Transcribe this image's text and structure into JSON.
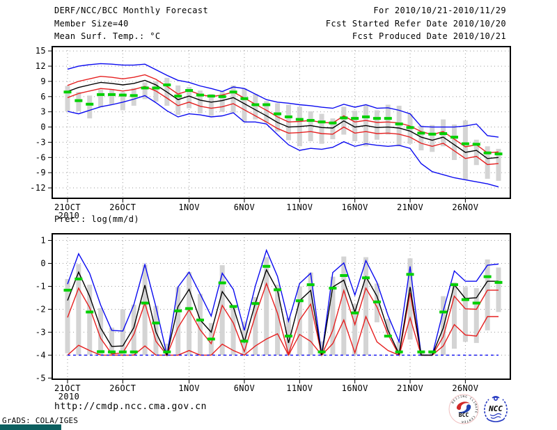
{
  "header": {
    "title": "DERF/NCC/BCC Monthly Forecast",
    "member_size": "Member Size=40",
    "for_range": "For 2010/10/21-2010/11/29",
    "fcst_started": "Fcst Started Refer Date 2010/10/20",
    "fcst_produced": "Fcst Produced Date 2010/10/21"
  },
  "footer": {
    "url": "http://cmdp.ncc.cma.gov.cn",
    "grads_credit": "GrADS: COLA/IGES"
  },
  "logos": {
    "bcc_label": "BCC",
    "bcc_ring_text": "BEIJING CLIMATE CENTER",
    "ncc_label": "NCC"
  },
  "colors": {
    "blue": "#0a0af0",
    "red": "#e62020",
    "black": "#000000",
    "green": "#00d000",
    "bar": "#d4d4d4",
    "grid": "#9a9a9a",
    "frame": "#000000",
    "status_teal": "#0c5f5f"
  },
  "chart_data": [
    {
      "type": "line",
      "title": "Mean Surf. Temp.: °C",
      "n_points": 40,
      "ylim": [
        -14.05,
        15.85
      ],
      "yticks": [
        15,
        12,
        9,
        6,
        3,
        0,
        -3,
        -6,
        -9,
        -12
      ],
      "x_ticks": [
        {
          "day": 0,
          "label": "21OCT",
          "sub": "2010"
        },
        {
          "day": 5,
          "label": "26OCT"
        },
        {
          "day": 11,
          "label": "1NOV"
        },
        {
          "day": 16,
          "label": "6NOV"
        },
        {
          "day": 21,
          "label": "11NOV"
        },
        {
          "day": 26,
          "label": "16NOV"
        },
        {
          "day": 31,
          "label": "21NOV"
        },
        {
          "day": 36,
          "label": "26NOV"
        }
      ],
      "series": {
        "upper_blue": [
          11.4,
          12.0,
          12.3,
          12.5,
          12.4,
          12.2,
          12.2,
          12.4,
          11.3,
          10.2,
          9.2,
          8.8,
          8.1,
          7.6,
          7.0,
          7.9,
          7.6,
          6.5,
          5.4,
          4.9,
          4.7,
          4.4,
          4.2,
          3.9,
          3.7,
          4.5,
          3.9,
          4.4,
          3.7,
          3.8,
          3.3,
          2.6,
          0.1,
          0.0,
          0.0,
          0.0,
          0.2,
          0.6,
          -1.7,
          -2.0
        ],
        "upper_red": [
          8.2,
          9.0,
          9.5,
          10.0,
          9.8,
          9.5,
          9.8,
          10.3,
          9.4,
          8.0,
          6.5,
          7.2,
          6.4,
          6.0,
          6.3,
          6.9,
          5.7,
          4.5,
          3.3,
          2.0,
          1.0,
          1.1,
          1.3,
          0.9,
          0.8,
          2.2,
          1.0,
          1.3,
          0.9,
          1.0,
          0.8,
          0.2,
          -0.9,
          -1.5,
          -0.9,
          -2.4,
          -3.9,
          -3.5,
          -5.1,
          -4.9
        ],
        "median_black": [
          7.0,
          7.8,
          8.3,
          8.8,
          8.6,
          8.3,
          8.6,
          9.2,
          8.3,
          6.9,
          5.4,
          6.1,
          5.3,
          4.9,
          5.2,
          5.8,
          4.6,
          3.4,
          2.2,
          0.9,
          0.0,
          0.1,
          0.3,
          -0.1,
          -0.2,
          1.2,
          0.0,
          0.3,
          -0.1,
          0.0,
          -0.2,
          -0.8,
          -2.0,
          -2.6,
          -2.0,
          -3.5,
          -5.0,
          -4.6,
          -6.2,
          -6.0
        ],
        "lower_red": [
          5.8,
          6.6,
          7.1,
          7.6,
          7.4,
          7.1,
          7.4,
          8.0,
          7.1,
          5.7,
          4.2,
          4.9,
          4.1,
          3.7,
          4.0,
          4.6,
          3.4,
          2.2,
          1.0,
          -0.3,
          -1.2,
          -1.1,
          -0.9,
          -1.3,
          -1.4,
          0.0,
          -1.2,
          -0.9,
          -1.3,
          -1.2,
          -1.4,
          -2.0,
          -3.2,
          -3.8,
          -3.2,
          -4.7,
          -6.2,
          -5.8,
          -7.4,
          -7.2
        ],
        "lower_blue": [
          3.1,
          2.6,
          3.3,
          4.0,
          4.4,
          4.9,
          5.5,
          6.2,
          4.8,
          3.2,
          2.0,
          2.6,
          2.4,
          2.0,
          2.2,
          2.8,
          1.0,
          1.0,
          0.6,
          -1.5,
          -3.5,
          -4.6,
          -4.2,
          -4.4,
          -4.0,
          -2.9,
          -3.8,
          -3.3,
          -3.6,
          -3.8,
          -3.6,
          -4.2,
          -7.2,
          -8.8,
          -9.4,
          -10.0,
          -10.4,
          -10.8,
          -11.2,
          -11.8
        ],
        "obs_green": [
          6.9,
          5.2,
          4.5,
          6.4,
          6.4,
          6.3,
          6.2,
          7.7,
          7.7,
          8.3,
          6.1,
          7.2,
          6.3,
          6.1,
          6.0,
          6.9,
          5.6,
          4.4,
          4.4,
          2.6,
          2.0,
          1.5,
          1.3,
          1.0,
          0.8,
          1.8,
          1.7,
          2.0,
          1.7,
          1.7,
          0.6,
          -0.1,
          -1.2,
          -1.4,
          -1.3,
          -2.0,
          -3.3,
          -3.4,
          -5.1,
          -5.3
        ],
        "bar_low": [
          3.1,
          3.1,
          1.7,
          3.9,
          4.5,
          3.3,
          4.2,
          5.5,
          5.0,
          4.2,
          2.4,
          3.7,
          2.7,
          2.2,
          3.0,
          2.8,
          1.0,
          1.5,
          0.8,
          -0.9,
          -2.6,
          -3.8,
          -2.8,
          -3.3,
          -2.4,
          -1.5,
          -2.8,
          -3.8,
          -2.5,
          -1.5,
          -3.8,
          -3.3,
          -4.6,
          -4.9,
          -3.8,
          -6.5,
          -10.4,
          -7.5,
          -10.2,
          -10.6
        ],
        "bar_high": [
          8.1,
          6.9,
          6.2,
          7.4,
          7.5,
          6.9,
          7.7,
          8.8,
          9.0,
          9.7,
          8.2,
          7.9,
          7.2,
          6.5,
          7.0,
          8.2,
          7.6,
          6.5,
          5.1,
          4.7,
          4.4,
          4.0,
          3.1,
          2.6,
          1.7,
          4.0,
          3.2,
          4.4,
          3.3,
          4.4,
          4.2,
          2.6,
          0.3,
          0.4,
          1.5,
          0.5,
          1.3,
          -2.5,
          -3.8,
          -4.3
        ]
      }
    },
    {
      "type": "line",
      "title": "Prec.: log(mm/d)",
      "n_points": 40,
      "ylim": [
        -5.05,
        1.29
      ],
      "yticks": [
        1,
        0,
        -1,
        -2,
        -3,
        -4,
        -5
      ],
      "x_ticks": [
        {
          "day": 0,
          "label": "21OCT",
          "sub": "2010"
        },
        {
          "day": 5,
          "label": "26OCT"
        },
        {
          "day": 11,
          "label": "1NOV"
        },
        {
          "day": 16,
          "label": "6NOV"
        },
        {
          "day": 21,
          "label": "11NOV"
        },
        {
          "day": 26,
          "label": "16NOV"
        },
        {
          "day": 31,
          "label": "21NOV"
        },
        {
          "day": 36,
          "label": "26NOV"
        }
      ],
      "series": {
        "upper_blue": [
          -0.9,
          0.42,
          -0.43,
          -1.82,
          -2.92,
          -2.95,
          -1.8,
          -0.05,
          -1.9,
          -4.0,
          -1.03,
          -0.38,
          -1.33,
          -2.3,
          -0.43,
          -1.13,
          -2.92,
          -0.98,
          0.57,
          -0.57,
          -2.52,
          -0.88,
          -0.43,
          -4.0,
          -0.4,
          0.02,
          -1.38,
          0.12,
          -0.83,
          -2.27,
          -3.42,
          -0.13,
          -4.0,
          -4.0,
          -2.07,
          -0.33,
          -0.78,
          -0.78,
          -0.08,
          -0.03
        ],
        "upper_red": [
          -2.36,
          -1.08,
          -1.93,
          -3.27,
          -3.95,
          -3.9,
          -3.1,
          -1.73,
          -3.4,
          -4.0,
          -2.8,
          -2.02,
          -2.9,
          -3.5,
          -1.83,
          -2.6,
          -3.85,
          -2.27,
          -0.88,
          -2.18,
          -3.95,
          -2.47,
          -1.78,
          -4.0,
          -2.92,
          -1.18,
          -2.67,
          -1.08,
          -1.9,
          -3.1,
          -4.0,
          -1.28,
          -4.0,
          -4.0,
          -3.2,
          -1.43,
          -1.98,
          -2.0,
          -1.17,
          -1.17
        ],
        "median_black": [
          -1.62,
          -0.38,
          -1.43,
          -2.82,
          -3.62,
          -3.6,
          -2.8,
          -0.95,
          -3.0,
          -4.0,
          -1.88,
          -1.13,
          -2.47,
          -3.0,
          -1.23,
          -1.9,
          -3.42,
          -1.73,
          -0.28,
          -1.18,
          -3.47,
          -1.63,
          -1.18,
          -4.0,
          -1.03,
          -0.73,
          -2.12,
          -0.58,
          -1.43,
          -2.92,
          -3.95,
          -1.03,
          -4.0,
          -4.0,
          -2.82,
          -0.93,
          -1.53,
          -1.5,
          -0.78,
          -0.78
        ],
        "lower_red": [
          -4.0,
          -3.57,
          -3.8,
          -4.0,
          -4.0,
          -4.0,
          -4.0,
          -3.6,
          -4.0,
          -4.0,
          -4.0,
          -3.8,
          -4.0,
          -4.0,
          -3.52,
          -3.8,
          -4.0,
          -3.6,
          -3.3,
          -3.07,
          -4.0,
          -3.1,
          -3.4,
          -4.0,
          -3.5,
          -2.47,
          -3.9,
          -2.32,
          -3.42,
          -3.8,
          -4.0,
          -2.37,
          -4.0,
          -4.0,
          -3.6,
          -2.67,
          -3.12,
          -3.17,
          -2.32,
          -2.32
        ],
        "lower_blue": [
          -4.0,
          -4.0,
          -4.0,
          -4.0,
          -4.0,
          -4.0,
          -4.0,
          -4.0,
          -4.0,
          -4.0,
          -4.0,
          -4.0,
          -4.0,
          -4.0,
          -4.0,
          -4.0,
          -4.0,
          -4.0,
          -4.0,
          -4.0,
          -4.0,
          -4.0,
          -4.0,
          -4.0,
          -4.0,
          -4.0,
          -4.0,
          -4.0,
          -4.0,
          -4.0,
          -4.0,
          -4.0,
          -4.0,
          -4.0,
          -4.0,
          -4.0,
          -4.0,
          -4.0,
          -4.0,
          -4.0
        ],
        "obs_green": [
          -1.17,
          -0.68,
          -2.12,
          -3.85,
          -3.86,
          -3.86,
          -3.86,
          -1.73,
          -2.6,
          -3.86,
          -2.07,
          -1.97,
          -2.47,
          -3.3,
          -0.85,
          -1.88,
          -3.39,
          -1.75,
          -0.13,
          -1.15,
          -3.17,
          -1.63,
          -0.93,
          -3.86,
          -1.08,
          -0.53,
          -2.16,
          -0.63,
          -1.68,
          -3.17,
          -3.86,
          -0.48,
          -3.86,
          -3.86,
          -2.12,
          -0.93,
          -1.58,
          -1.73,
          -0.58,
          -0.83
        ],
        "bar_low": [
          -3.92,
          -4.0,
          -3.98,
          -4.0,
          -4.0,
          -4.0,
          -4.0,
          -4.0,
          -4.0,
          -4.0,
          -4.0,
          -4.0,
          -4.0,
          -4.0,
          -4.0,
          -4.0,
          -4.0,
          -4.0,
          -4.0,
          -4.0,
          -4.0,
          -4.0,
          -4.0,
          -4.0,
          -4.0,
          -4.0,
          -4.0,
          -4.0,
          -2.57,
          -3.07,
          -4.0,
          -3.32,
          -4.0,
          -4.0,
          -4.0,
          -3.72,
          -3.42,
          -3.47,
          -2.92,
          -2.12
        ],
        "bar_high": [
          -0.68,
          -0.03,
          -0.93,
          -1.95,
          -2.8,
          -2.0,
          -1.8,
          -0.05,
          -1.85,
          -3.5,
          -1.03,
          -0.38,
          -1.33,
          -2.6,
          -0.08,
          -1.83,
          -2.55,
          -1.47,
          0.27,
          -0.93,
          -2.37,
          -1.0,
          -0.4,
          -3.4,
          -0.58,
          0.3,
          -1.77,
          0.27,
          -0.88,
          -2.42,
          -3.4,
          0.22,
          -3.8,
          -3.8,
          -1.43,
          -0.83,
          -1.03,
          -1.08,
          0.17,
          -0.18
        ]
      }
    }
  ]
}
